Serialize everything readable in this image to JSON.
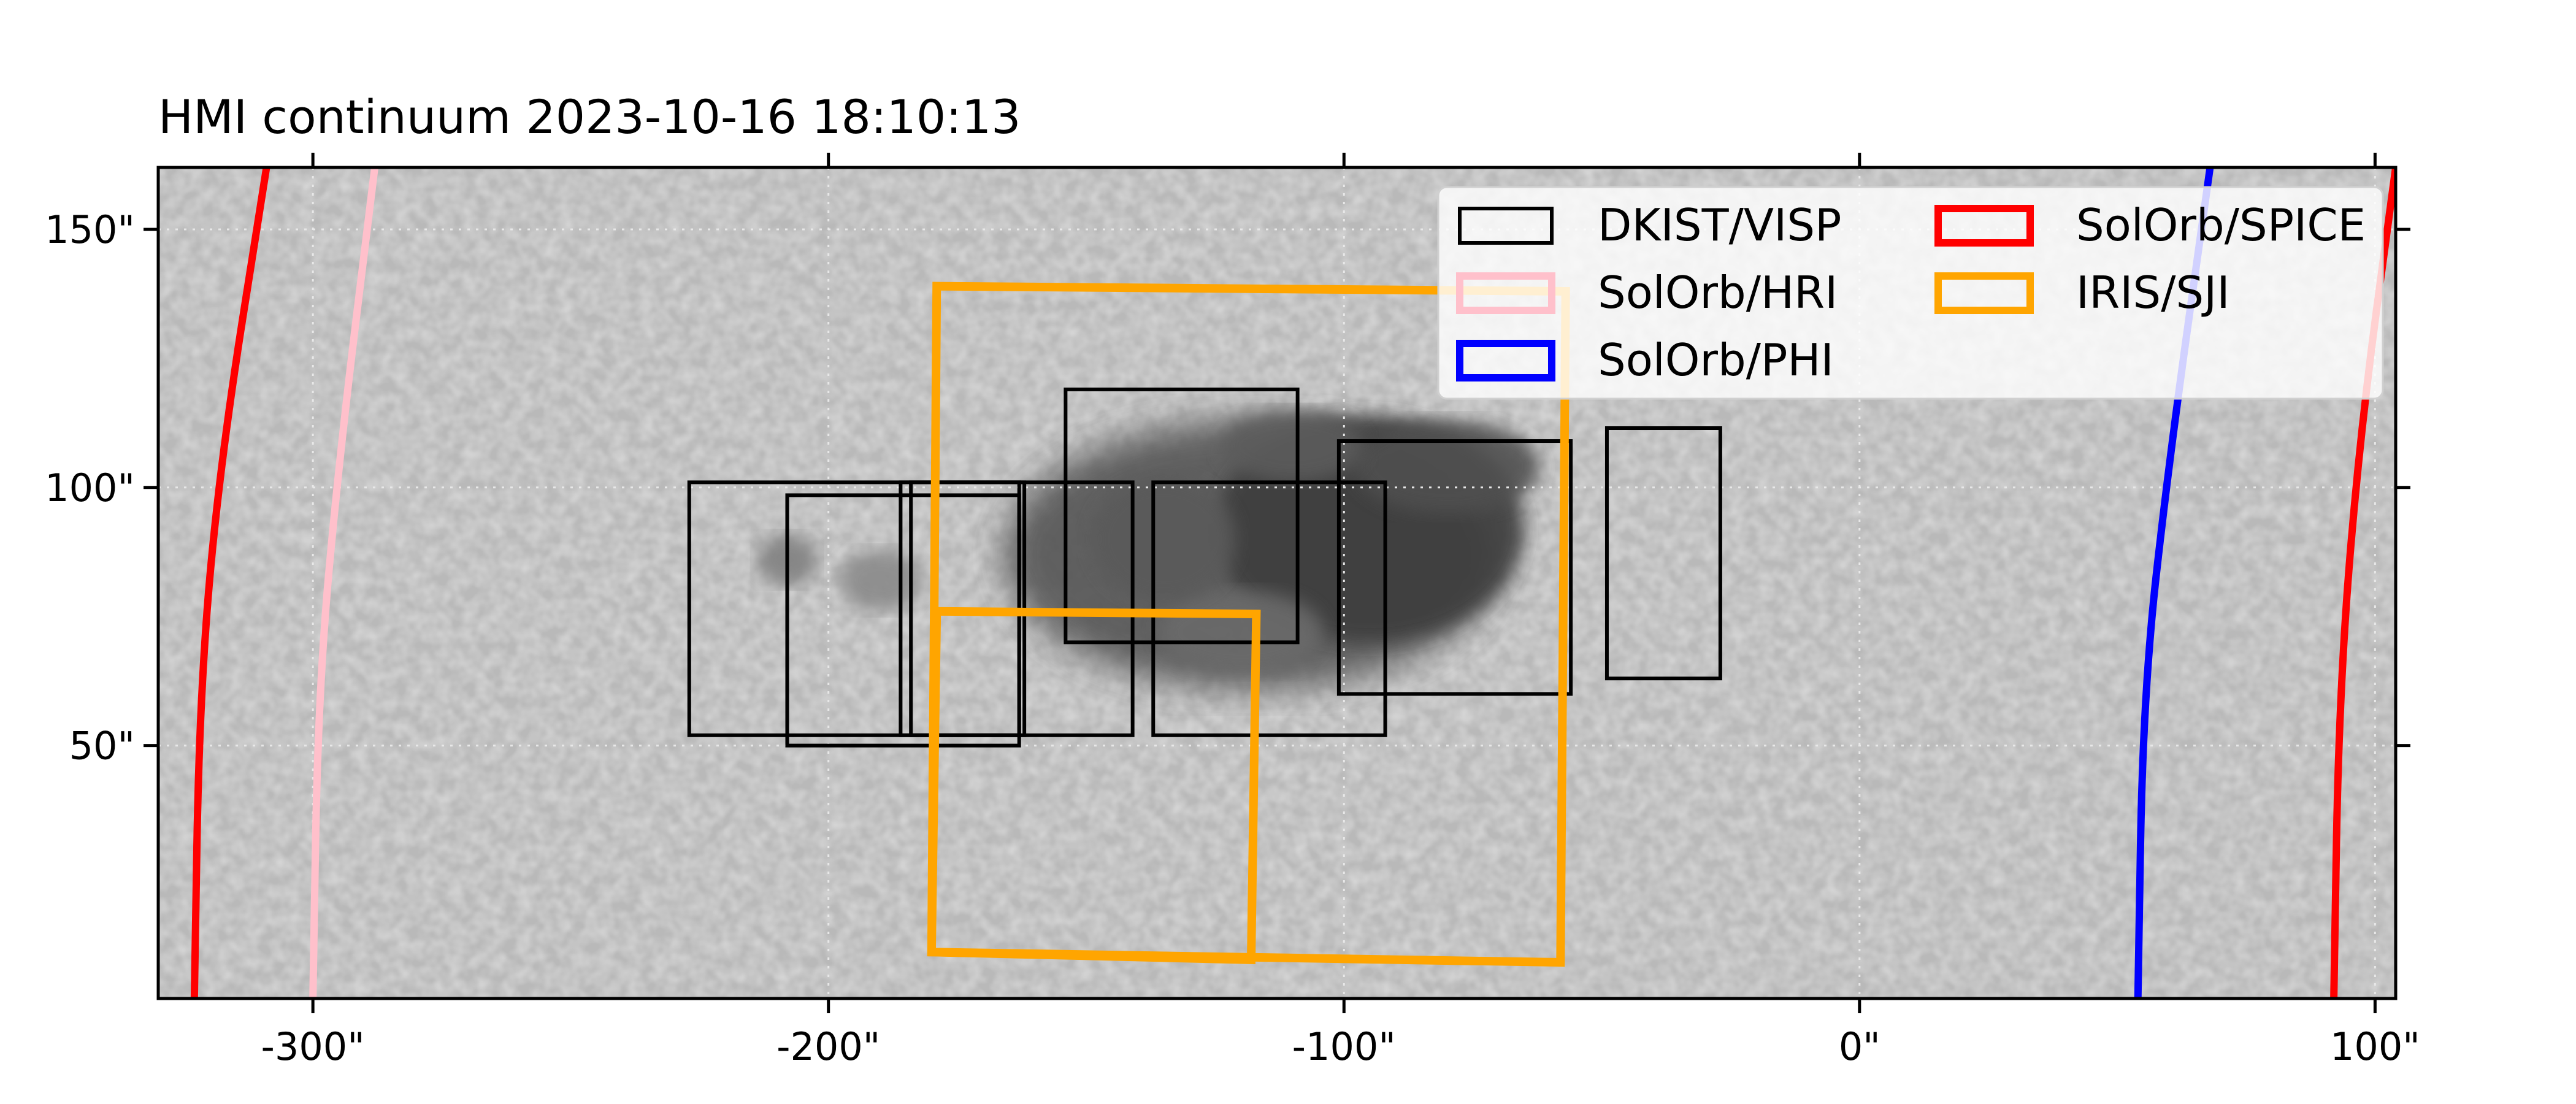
{
  "chart_data": {
    "type": "image-overlay",
    "title": "HMI continuum 2023-10-16 18:10:13",
    "background": "solar continuum intensity image (granulation and sunspot)",
    "xlim": [
      -330,
      104
    ],
    "ylim": [
      1,
      162
    ],
    "x_ticks": [
      {
        "value": -300,
        "label": "-300\""
      },
      {
        "value": -200,
        "label": "-200\""
      },
      {
        "value": -100,
        "label": "-100\""
      },
      {
        "value": 0,
        "label": "0\""
      },
      {
        "value": 100,
        "label": "100\""
      }
    ],
    "y_ticks": [
      {
        "value": 150,
        "label": "150\""
      },
      {
        "value": 100,
        "label": "100\""
      },
      {
        "value": 50,
        "label": "50\""
      }
    ],
    "grid": true,
    "legend_position": "top-right",
    "legend": [
      {
        "label": "DKIST/VISP",
        "color": "#000000"
      },
      {
        "label": "SolOrb/HRI",
        "color": "#ffc0cb"
      },
      {
        "label": "SolOrb/PHI",
        "color": "#0000ff"
      },
      {
        "label": "SolOrb/SPICE",
        "color": "#ff0000"
      },
      {
        "label": "IRIS/SJI",
        "color": "#ffa500"
      }
    ],
    "series": [
      {
        "name": "DKIST/VISP",
        "color": "#000000",
        "boxes": [
          {
            "x0": -227,
            "x1": -163,
            "y0": 52,
            "y1": 101
          },
          {
            "x0": -208,
            "x1": -163,
            "y0": 50,
            "y1": 98.5
          },
          {
            "x0": -186,
            "x1": -141,
            "y0": 52,
            "y1": 101
          },
          {
            "x0": -184,
            "x1": -162,
            "y0": 52,
            "y1": 101
          },
          {
            "x0": -154,
            "x1": -109,
            "y0": 70,
            "y1": 119
          },
          {
            "x0": -137,
            "x1": -92,
            "y0": 52,
            "y1": 101
          },
          {
            "x0": -101,
            "x1": -56,
            "y0": 60,
            "y1": 109
          },
          {
            "x0": -49,
            "x1": -27,
            "y0": 63,
            "y1": 111.5
          }
        ]
      },
      {
        "name": "IRIS/SJI",
        "color": "#ffa500",
        "polygons": [
          [
            [
              -179,
              139
            ],
            [
              -57,
              138
            ],
            [
              -58,
              8
            ],
            [
              -180,
              10
            ]
          ],
          [
            [
              -179,
              76
            ],
            [
              -117,
              75.5
            ],
            [
              -118,
              8.5
            ],
            [
              -180,
              10
            ]
          ]
        ]
      },
      {
        "name": "SolOrb/SPICE",
        "color": "#ff0000",
        "curves": [
          [
            [
              -309,
              162
            ],
            [
              -318,
              105
            ],
            [
              -322,
              60
            ],
            [
              -323,
              1
            ]
          ],
          [
            [
              104,
              162
            ],
            [
              97,
              110
            ],
            [
              93,
              60
            ],
            [
              92,
              1
            ]
          ]
        ]
      },
      {
        "name": "SolOrb/HRI",
        "color": "#ffc0cb",
        "curves": [
          [
            [
              -288,
              162
            ],
            [
              -295,
              105
            ],
            [
              -299,
              60
            ],
            [
              -300,
              1
            ]
          ]
        ]
      },
      {
        "name": "SolOrb/PHI",
        "color": "#0000ff",
        "curves": [
          [
            [
              68,
              162
            ],
            [
              60,
              105
            ],
            [
              55,
              60
            ],
            [
              54,
              1
            ]
          ]
        ]
      }
    ]
  }
}
